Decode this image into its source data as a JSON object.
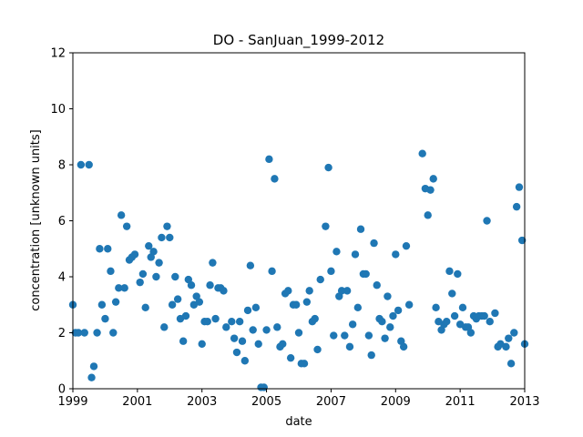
{
  "chart_data": {
    "type": "scatter",
    "title": "DO - SanJuan_1999-2012",
    "xlabel": "date",
    "ylabel": "concentration [unknown units]",
    "xlim": [
      1999.0,
      2013.0
    ],
    "ylim": [
      0,
      12
    ],
    "x_ticks": [
      "1999",
      "2001",
      "2003",
      "2005",
      "2007",
      "2009",
      "2011",
      "2013"
    ],
    "y_ticks": [
      "0",
      "2",
      "4",
      "6",
      "8",
      "10",
      "12"
    ],
    "grid": false,
    "marker_color": "#1f77b4",
    "points": [
      [
        1999.0,
        3.0
      ],
      [
        1999.08,
        2.0
      ],
      [
        1999.17,
        2.0
      ],
      [
        1999.25,
        8.0
      ],
      [
        1999.36,
        2.0
      ],
      [
        1999.5,
        8.0
      ],
      [
        1999.58,
        0.4
      ],
      [
        1999.65,
        0.8
      ],
      [
        1999.75,
        2.0
      ],
      [
        1999.83,
        5.0
      ],
      [
        1999.9,
        3.0
      ],
      [
        2000.0,
        2.5
      ],
      [
        2000.08,
        5.0
      ],
      [
        2000.17,
        4.2
      ],
      [
        2000.25,
        2.0
      ],
      [
        2000.33,
        3.1
      ],
      [
        2000.42,
        3.6
      ],
      [
        2000.5,
        6.2
      ],
      [
        2000.6,
        3.6
      ],
      [
        2000.67,
        5.8
      ],
      [
        2000.75,
        4.6
      ],
      [
        2000.83,
        4.7
      ],
      [
        2000.92,
        4.8
      ],
      [
        2001.08,
        3.8
      ],
      [
        2001.17,
        4.1
      ],
      [
        2001.25,
        2.9
      ],
      [
        2001.35,
        5.1
      ],
      [
        2001.42,
        4.7
      ],
      [
        2001.5,
        4.9
      ],
      [
        2001.58,
        4.0
      ],
      [
        2001.67,
        4.5
      ],
      [
        2001.75,
        5.4
      ],
      [
        2001.83,
        2.2
      ],
      [
        2001.92,
        5.8
      ],
      [
        2002.0,
        5.4
      ],
      [
        2002.08,
        3.0
      ],
      [
        2002.17,
        4.0
      ],
      [
        2002.25,
        3.2
      ],
      [
        2002.33,
        2.5
      ],
      [
        2002.42,
        1.7
      ],
      [
        2002.5,
        2.6
      ],
      [
        2002.58,
        3.9
      ],
      [
        2002.67,
        3.7
      ],
      [
        2002.75,
        3.0
      ],
      [
        2002.83,
        3.3
      ],
      [
        2002.92,
        3.1
      ],
      [
        2003.0,
        1.6
      ],
      [
        2003.08,
        2.4
      ],
      [
        2003.17,
        2.4
      ],
      [
        2003.25,
        3.7
      ],
      [
        2003.33,
        4.5
      ],
      [
        2003.42,
        2.5
      ],
      [
        2003.5,
        3.6
      ],
      [
        2003.58,
        3.6
      ],
      [
        2003.67,
        3.5
      ],
      [
        2003.75,
        2.2
      ],
      [
        2003.92,
        2.4
      ],
      [
        2004.0,
        1.8
      ],
      [
        2004.08,
        1.3
      ],
      [
        2004.17,
        2.4
      ],
      [
        2004.25,
        1.7
      ],
      [
        2004.33,
        1.0
      ],
      [
        2004.42,
        2.8
      ],
      [
        2004.5,
        4.4
      ],
      [
        2004.58,
        2.1
      ],
      [
        2004.67,
        2.9
      ],
      [
        2004.75,
        1.6
      ],
      [
        2004.83,
        0.05
      ],
      [
        2004.92,
        0.05
      ],
      [
        2005.0,
        2.1
      ],
      [
        2005.08,
        8.2
      ],
      [
        2005.17,
        4.2
      ],
      [
        2005.25,
        7.5
      ],
      [
        2005.33,
        2.2
      ],
      [
        2005.42,
        1.5
      ],
      [
        2005.5,
        1.6
      ],
      [
        2005.58,
        3.4
      ],
      [
        2005.67,
        3.5
      ],
      [
        2005.75,
        1.1
      ],
      [
        2005.83,
        3.0
      ],
      [
        2005.92,
        3.0
      ],
      [
        2006.0,
        2.0
      ],
      [
        2006.08,
        0.9
      ],
      [
        2006.17,
        0.9
      ],
      [
        2006.25,
        3.1
      ],
      [
        2006.33,
        3.5
      ],
      [
        2006.42,
        2.4
      ],
      [
        2006.5,
        2.5
      ],
      [
        2006.58,
        1.4
      ],
      [
        2006.67,
        3.9
      ],
      [
        2006.83,
        5.8
      ],
      [
        2006.92,
        7.9
      ],
      [
        2007.0,
        4.2
      ],
      [
        2007.08,
        1.9
      ],
      [
        2007.17,
        4.9
      ],
      [
        2007.25,
        3.3
      ],
      [
        2007.33,
        3.5
      ],
      [
        2007.42,
        1.9
      ],
      [
        2007.5,
        3.5
      ],
      [
        2007.58,
        1.5
      ],
      [
        2007.67,
        2.3
      ],
      [
        2007.75,
        4.8
      ],
      [
        2007.83,
        2.9
      ],
      [
        2007.92,
        5.7
      ],
      [
        2008.0,
        4.1
      ],
      [
        2008.08,
        4.1
      ],
      [
        2008.17,
        1.9
      ],
      [
        2008.25,
        1.2
      ],
      [
        2008.33,
        5.2
      ],
      [
        2008.42,
        3.7
      ],
      [
        2008.5,
        2.5
      ],
      [
        2008.58,
        2.4
      ],
      [
        2008.67,
        1.8
      ],
      [
        2008.75,
        3.3
      ],
      [
        2008.83,
        2.2
      ],
      [
        2008.92,
        2.6
      ],
      [
        2009.0,
        4.8
      ],
      [
        2009.08,
        2.8
      ],
      [
        2009.17,
        1.7
      ],
      [
        2009.25,
        1.5
      ],
      [
        2009.33,
        5.1
      ],
      [
        2009.42,
        3.0
      ],
      [
        2009.83,
        8.4
      ],
      [
        2009.92,
        7.15
      ],
      [
        2010.0,
        6.2
      ],
      [
        2010.08,
        7.1
      ],
      [
        2010.17,
        7.5
      ],
      [
        2010.25,
        2.9
      ],
      [
        2010.33,
        2.4
      ],
      [
        2010.42,
        2.1
      ],
      [
        2010.5,
        2.3
      ],
      [
        2010.58,
        2.4
      ],
      [
        2010.67,
        4.2
      ],
      [
        2010.75,
        3.4
      ],
      [
        2010.83,
        2.6
      ],
      [
        2010.92,
        4.1
      ],
      [
        2011.0,
        2.3
      ],
      [
        2011.08,
        2.9
      ],
      [
        2011.17,
        2.2
      ],
      [
        2011.25,
        2.2
      ],
      [
        2011.33,
        2.0
      ],
      [
        2011.42,
        2.6
      ],
      [
        2011.5,
        2.5
      ],
      [
        2011.58,
        2.6
      ],
      [
        2011.67,
        2.6
      ],
      [
        2011.75,
        2.6
      ],
      [
        2011.83,
        6.0
      ],
      [
        2011.92,
        2.4
      ],
      [
        2012.08,
        2.7
      ],
      [
        2012.17,
        1.5
      ],
      [
        2012.25,
        1.6
      ],
      [
        2012.42,
        1.5
      ],
      [
        2012.5,
        1.8
      ],
      [
        2012.58,
        0.9
      ],
      [
        2012.67,
        2.0
      ],
      [
        2012.75,
        6.5
      ],
      [
        2012.83,
        7.2
      ],
      [
        2012.92,
        5.3
      ],
      [
        2013.0,
        1.6
      ]
    ]
  }
}
